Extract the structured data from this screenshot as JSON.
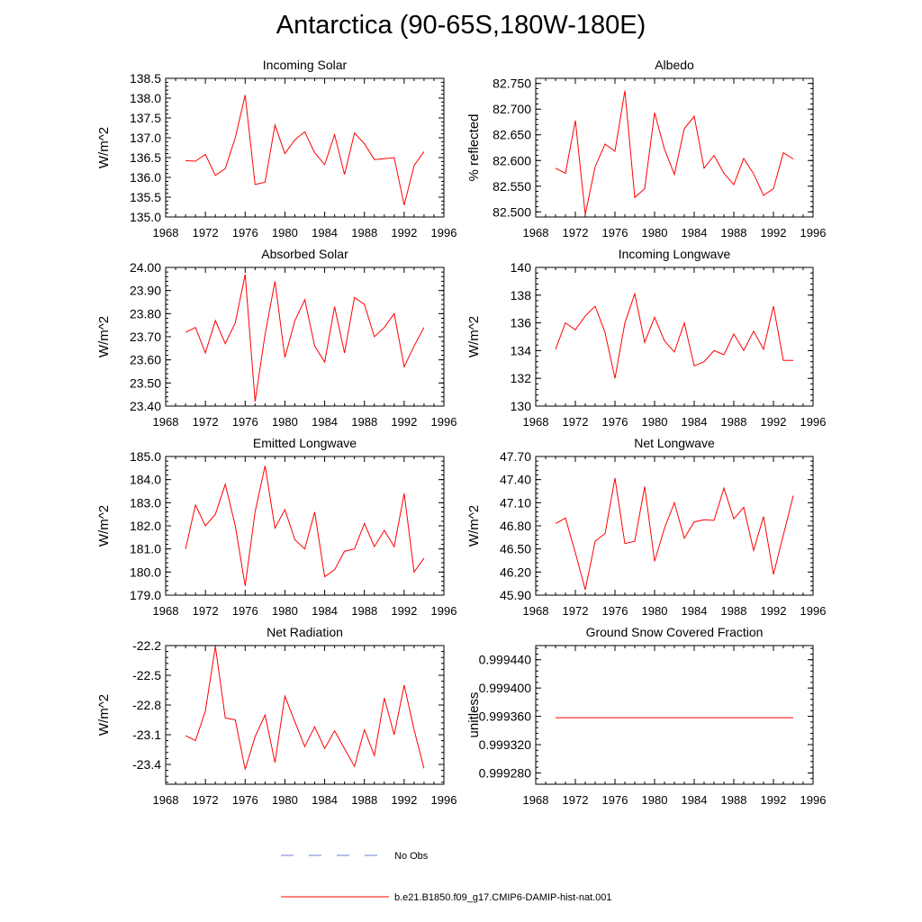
{
  "figure": {
    "title": "Antarctica (90-65S,180W-180E)",
    "line_color": "#ff0000",
    "obs_color": "#6a7fd6"
  },
  "legend": [
    {
      "label": "No Obs",
      "style": "dashed",
      "color": "#6a7fd6"
    },
    {
      "label": "b.e21.B1850.f09_g17.CMIP6-DAMIP-hist-nat.001",
      "style": "solid",
      "color": "#ff0000"
    }
  ],
  "chart_data": [
    {
      "type": "line",
      "title": "Incoming Solar",
      "ylabel": "W/m^2",
      "xlabel": "",
      "xlim": [
        1968,
        1996
      ],
      "xticks": [
        "1968",
        "1972",
        "1976",
        "1980",
        "1984",
        "1988",
        "1992",
        "1996"
      ],
      "ylim": [
        135.0,
        138.5
      ],
      "yticks": [
        "135.0",
        "135.5",
        "136.0",
        "136.5",
        "137.0",
        "137.5",
        "138.0",
        "138.5"
      ],
      "x": [
        1970,
        1971,
        1972,
        1973,
        1974,
        1975,
        1976,
        1977,
        1978,
        1979,
        1980,
        1981,
        1982,
        1983,
        1984,
        1985,
        1986,
        1987,
        1988,
        1989,
        1990,
        1991,
        1992,
        1993,
        1994
      ],
      "series": [
        {
          "name": "b.e21.B1850.f09_g17.CMIP6-DAMIP-hist-nat.001",
          "values": [
            136.42,
            136.41,
            136.58,
            136.05,
            136.22,
            137.0,
            138.08,
            135.82,
            135.88,
            137.32,
            136.6,
            136.95,
            137.15,
            136.62,
            136.32,
            137.08,
            136.07,
            137.12,
            136.85,
            136.45,
            136.47,
            136.5,
            135.3,
            136.3,
            136.65
          ]
        }
      ]
    },
    {
      "type": "line",
      "title": "Albedo",
      "ylabel": "% reflected",
      "xlabel": "",
      "xlim": [
        1968,
        1996
      ],
      "xticks": [
        "1968",
        "1972",
        "1976",
        "1980",
        "1984",
        "1988",
        "1992",
        "1996"
      ],
      "ylim": [
        82.49,
        82.76
      ],
      "yticks": [
        "82.500",
        "82.550",
        "82.600",
        "82.650",
        "82.700",
        "82.750"
      ],
      "x": [
        1970,
        1971,
        1972,
        1973,
        1974,
        1975,
        1976,
        1977,
        1978,
        1979,
        1980,
        1981,
        1982,
        1983,
        1984,
        1985,
        1986,
        1987,
        1988,
        1989,
        1990,
        1991,
        1992,
        1993,
        1994
      ],
      "series": [
        {
          "name": "b.e21.B1850.f09_g17.CMIP6-DAMIP-hist-nat.001",
          "values": [
            82.585,
            82.575,
            82.678,
            82.495,
            82.588,
            82.632,
            82.618,
            82.736,
            82.528,
            82.545,
            82.693,
            82.622,
            82.573,
            82.662,
            82.686,
            82.585,
            82.61,
            82.575,
            82.553,
            82.604,
            82.574,
            82.532,
            82.545,
            82.615,
            82.603
          ]
        }
      ]
    },
    {
      "type": "line",
      "title": "Absorbed Solar",
      "ylabel": "W/m^2",
      "xlabel": "",
      "xlim": [
        1968,
        1996
      ],
      "xticks": [
        "1968",
        "1972",
        "1976",
        "1980",
        "1984",
        "1988",
        "1992",
        "1996"
      ],
      "ylim": [
        23.4,
        24.0
      ],
      "yticks": [
        "23.40",
        "23.50",
        "23.60",
        "23.70",
        "23.80",
        "23.90",
        "24.00"
      ],
      "x": [
        1970,
        1971,
        1972,
        1973,
        1974,
        1975,
        1976,
        1977,
        1978,
        1979,
        1980,
        1981,
        1982,
        1983,
        1984,
        1985,
        1986,
        1987,
        1988,
        1989,
        1990,
        1991,
        1992,
        1993,
        1994
      ],
      "series": [
        {
          "name": "b.e21.B1850.f09_g17.CMIP6-DAMIP-hist-nat.001",
          "values": [
            23.72,
            23.74,
            23.63,
            23.77,
            23.67,
            23.76,
            23.97,
            23.42,
            23.71,
            23.94,
            23.61,
            23.77,
            23.86,
            23.66,
            23.59,
            23.83,
            23.63,
            23.87,
            23.84,
            23.7,
            23.74,
            23.8,
            23.57,
            23.66,
            23.74
          ]
        }
      ]
    },
    {
      "type": "line",
      "title": "Incoming Longwave",
      "ylabel": "W/m^2",
      "xlabel": "",
      "xlim": [
        1968,
        1996
      ],
      "xticks": [
        "1968",
        "1972",
        "1976",
        "1980",
        "1984",
        "1988",
        "1992",
        "1996"
      ],
      "ylim": [
        130,
        140
      ],
      "yticks": [
        "130",
        "132",
        "134",
        "136",
        "138",
        "140"
      ],
      "x": [
        1970,
        1971,
        1972,
        1973,
        1974,
        1975,
        1976,
        1977,
        1978,
        1979,
        1980,
        1981,
        1982,
        1983,
        1984,
        1985,
        1986,
        1987,
        1988,
        1989,
        1990,
        1991,
        1992,
        1993,
        1994
      ],
      "series": [
        {
          "name": "b.e21.B1850.f09_g17.CMIP6-DAMIP-hist-nat.001",
          "values": [
            134.1,
            136.0,
            135.5,
            136.5,
            137.2,
            135.3,
            132.0,
            136.0,
            138.1,
            134.6,
            136.4,
            134.7,
            133.9,
            136.0,
            132.9,
            133.2,
            134.0,
            133.7,
            135.2,
            134.0,
            135.4,
            134.1,
            137.2,
            133.3,
            133.3
          ]
        }
      ]
    },
    {
      "type": "line",
      "title": "Emitted Longwave",
      "ylabel": "W/m^2",
      "xlabel": "",
      "xlim": [
        1968,
        1996
      ],
      "xticks": [
        "1968",
        "1972",
        "1976",
        "1980",
        "1984",
        "1988",
        "1992",
        "1996"
      ],
      "ylim": [
        179.0,
        185.0
      ],
      "yticks": [
        "179.0",
        "180.0",
        "181.0",
        "182.0",
        "183.0",
        "184.0",
        "185.0"
      ],
      "x": [
        1970,
        1971,
        1972,
        1973,
        1974,
        1975,
        1976,
        1977,
        1978,
        1979,
        1980,
        1981,
        1982,
        1983,
        1984,
        1985,
        1986,
        1987,
        1988,
        1989,
        1990,
        1991,
        1992,
        1993,
        1994
      ],
      "series": [
        {
          "name": "b.e21.B1850.f09_g17.CMIP6-DAMIP-hist-nat.001",
          "values": [
            181.0,
            182.9,
            182.0,
            182.5,
            183.8,
            182.0,
            179.4,
            182.6,
            184.6,
            181.9,
            182.7,
            181.4,
            181.0,
            182.6,
            179.8,
            180.1,
            180.9,
            181.0,
            182.1,
            181.1,
            181.8,
            181.1,
            183.4,
            180.0,
            180.6
          ]
        }
      ]
    },
    {
      "type": "line",
      "title": "Net Longwave",
      "ylabel": "W/m^2",
      "xlabel": "",
      "xlim": [
        1968,
        1996
      ],
      "xticks": [
        "1968",
        "1972",
        "1976",
        "1980",
        "1984",
        "1988",
        "1992",
        "1996"
      ],
      "ylim": [
        45.9,
        47.7
      ],
      "yticks": [
        "45.90",
        "46.20",
        "46.50",
        "46.80",
        "47.10",
        "47.40",
        "47.70"
      ],
      "x": [
        1970,
        1971,
        1972,
        1973,
        1974,
        1975,
        1976,
        1977,
        1978,
        1979,
        1980,
        1981,
        1982,
        1983,
        1984,
        1985,
        1986,
        1987,
        1988,
        1989,
        1990,
        1991,
        1992,
        1993,
        1994
      ],
      "series": [
        {
          "name": "b.e21.B1850.f09_g17.CMIP6-DAMIP-hist-nat.001",
          "values": [
            46.83,
            46.9,
            46.45,
            45.97,
            46.6,
            46.7,
            47.42,
            46.57,
            46.6,
            47.31,
            46.34,
            46.77,
            47.1,
            46.64,
            46.85,
            46.88,
            46.87,
            47.29,
            46.89,
            47.04,
            46.48,
            46.92,
            46.17,
            46.68,
            47.19
          ]
        }
      ]
    },
    {
      "type": "line",
      "title": "Net Radiation",
      "ylabel": "W/m^2",
      "xlabel": "",
      "xlim": [
        1968,
        1996
      ],
      "xticks": [
        "1968",
        "1972",
        "1976",
        "1980",
        "1984",
        "1988",
        "1992",
        "1996"
      ],
      "ylim": [
        -23.6,
        -22.2
      ],
      "yticks": [
        "-23.4",
        "-23.1",
        "-22.8",
        "-22.5",
        "-22.2"
      ],
      "x": [
        1970,
        1971,
        1972,
        1973,
        1974,
        1975,
        1976,
        1977,
        1978,
        1979,
        1980,
        1981,
        1982,
        1983,
        1984,
        1985,
        1986,
        1987,
        1988,
        1989,
        1990,
        1991,
        1992,
        1993,
        1994
      ],
      "series": [
        {
          "name": "b.e21.B1850.f09_g17.CMIP6-DAMIP-hist-nat.001",
          "values": [
            -23.11,
            -23.16,
            -22.86,
            -22.21,
            -22.93,
            -22.95,
            -23.45,
            -23.12,
            -22.9,
            -23.38,
            -22.71,
            -22.97,
            -23.22,
            -23.02,
            -23.24,
            -23.06,
            -23.24,
            -23.42,
            -23.05,
            -23.31,
            -22.73,
            -23.1,
            -22.6,
            -23.05,
            -23.44
          ]
        }
      ]
    },
    {
      "type": "line",
      "title": "Ground Snow Covered Fraction",
      "ylabel": "unitless",
      "xlabel": "",
      "xlim": [
        1968,
        1996
      ],
      "xticks": [
        "1968",
        "1972",
        "1976",
        "1980",
        "1984",
        "1988",
        "1992",
        "1996"
      ],
      "ylim": [
        0.999264,
        0.99946
      ],
      "yticks": [
        "0.999280",
        "0.999320",
        "0.999360",
        "0.999400",
        "0.999440"
      ],
      "x": [
        1970,
        1971,
        1972,
        1973,
        1974,
        1975,
        1976,
        1977,
        1978,
        1979,
        1980,
        1981,
        1982,
        1983,
        1984,
        1985,
        1986,
        1987,
        1988,
        1989,
        1990,
        1991,
        1992,
        1993,
        1994
      ],
      "series": [
        {
          "name": "b.e21.B1850.f09_g17.CMIP6-DAMIP-hist-nat.001",
          "values": [
            0.999358,
            0.999358,
            0.999358,
            0.999358,
            0.999358,
            0.999358,
            0.999358,
            0.999358,
            0.999358,
            0.999358,
            0.999358,
            0.999358,
            0.999358,
            0.999358,
            0.999358,
            0.999358,
            0.999358,
            0.999358,
            0.999358,
            0.999358,
            0.999358,
            0.999358,
            0.999358,
            0.999358,
            0.999358
          ]
        }
      ]
    }
  ]
}
